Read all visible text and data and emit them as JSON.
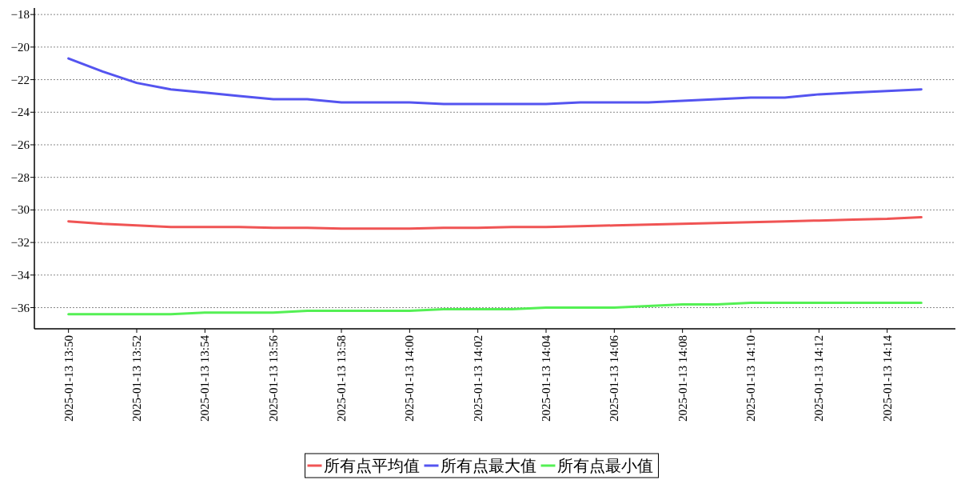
{
  "chart_data": {
    "type": "line",
    "x": [
      "2025-01-13T13:50",
      "2025-01-13T13:51",
      "2025-01-13T13:52",
      "2025-01-13T13:53",
      "2025-01-13T13:54",
      "2025-01-13T13:55",
      "2025-01-13T13:56",
      "2025-01-13T13:57",
      "2025-01-13T13:58",
      "2025-01-13T13:59",
      "2025-01-13T14:00",
      "2025-01-13T14:01",
      "2025-01-13T14:02",
      "2025-01-13T14:03",
      "2025-01-13T14:04",
      "2025-01-13T14:05",
      "2025-01-13T14:06",
      "2025-01-13T14:07",
      "2025-01-13T14:08",
      "2025-01-13T14:09",
      "2025-01-13T14:10",
      "2025-01-13T14:11",
      "2025-01-13T14:12",
      "2025-01-13T14:13",
      "2025-01-13T14:14",
      "2025-01-13T14:15"
    ],
    "series": [
      {
        "name": "所有点平均值",
        "color": "#f05454",
        "values": [
          -30.7,
          -30.85,
          -30.95,
          -31.05,
          -31.05,
          -31.05,
          -31.1,
          -31.1,
          -31.15,
          -31.15,
          -31.15,
          -31.1,
          -31.1,
          -31.05,
          -31.05,
          -31.0,
          -30.95,
          -30.9,
          -30.85,
          -30.8,
          -30.75,
          -30.7,
          -30.65,
          -30.6,
          -30.55,
          -30.45
        ]
      },
      {
        "name": "所有点最大值",
        "color": "#5454f0",
        "values": [
          -20.7,
          -21.5,
          -22.2,
          -22.6,
          -22.8,
          -23.0,
          -23.2,
          -23.2,
          -23.4,
          -23.4,
          -23.4,
          -23.5,
          -23.5,
          -23.5,
          -23.5,
          -23.4,
          -23.4,
          -23.4,
          -23.3,
          -23.2,
          -23.1,
          -23.1,
          -22.9,
          -22.8,
          -22.7,
          -22.6
        ]
      },
      {
        "name": "所有点最小值",
        "color": "#54f054",
        "values": [
          -36.4,
          -36.4,
          -36.4,
          -36.4,
          -36.3,
          -36.3,
          -36.3,
          -36.2,
          -36.2,
          -36.2,
          -36.2,
          -36.1,
          -36.1,
          -36.1,
          -36.0,
          -36.0,
          -36.0,
          -35.9,
          -35.8,
          -35.8,
          -35.7,
          -35.7,
          -35.7,
          -35.7,
          -35.7,
          -35.7
        ]
      }
    ],
    "xlim": [
      "2025-01-13T13:49",
      "2025-01-13T14:16"
    ],
    "xticks": [
      {
        "value": "2025-01-13T13:50",
        "label": "2025-01-13 13:50"
      },
      {
        "value": "2025-01-13T13:52",
        "label": "2025-01-13 13:52"
      },
      {
        "value": "2025-01-13T13:54",
        "label": "2025-01-13 13:54"
      },
      {
        "value": "2025-01-13T13:56",
        "label": "2025-01-13 13:56"
      },
      {
        "value": "2025-01-13T13:58",
        "label": "2025-01-13 13:58"
      },
      {
        "value": "2025-01-13T14:00",
        "label": "2025-01-13 14:00"
      },
      {
        "value": "2025-01-13T14:02",
        "label": "2025-01-13 14:02"
      },
      {
        "value": "2025-01-13T14:04",
        "label": "2025-01-13 14:04"
      },
      {
        "value": "2025-01-13T14:06",
        "label": "2025-01-13 14:06"
      },
      {
        "value": "2025-01-13T14:08",
        "label": "2025-01-13 14:08"
      },
      {
        "value": "2025-01-13T14:10",
        "label": "2025-01-13 14:10"
      },
      {
        "value": "2025-01-13T14:12",
        "label": "2025-01-13 14:12"
      },
      {
        "value": "2025-01-13T14:14",
        "label": "2025-01-13 14:14"
      }
    ],
    "ylim": [
      -37.3,
      -17.6
    ],
    "yticks": [
      -36,
      -34,
      -32,
      -30,
      -28,
      -26,
      -24,
      -22,
      -20,
      -18
    ],
    "grid": "y",
    "legend": "bottom",
    "marker": "none",
    "line_style": "solid"
  }
}
